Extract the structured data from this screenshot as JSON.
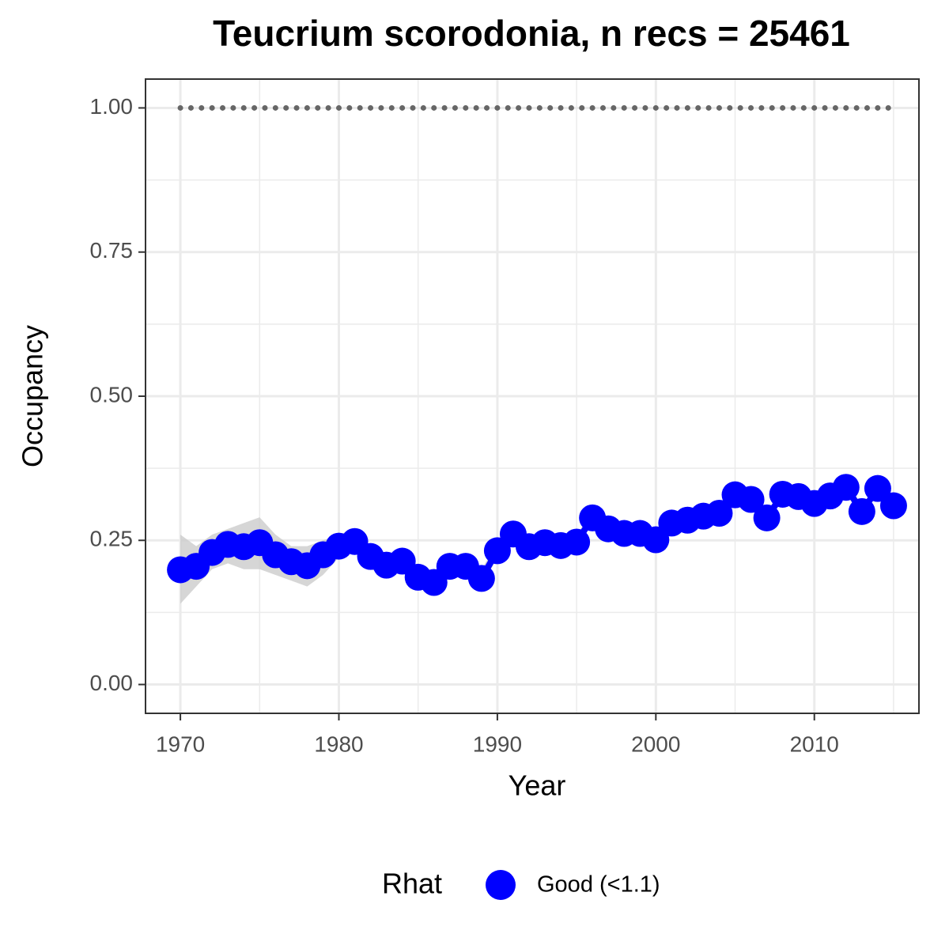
{
  "chart_data": {
    "type": "line",
    "title": "Teucrium scorodonia, n recs = 25461",
    "x_label": "Year",
    "y_label": "Occupancy",
    "legend_title": "Rhat",
    "x": [
      1970,
      1971,
      1972,
      1973,
      1974,
      1975,
      1976,
      1977,
      1978,
      1979,
      1980,
      1981,
      1982,
      1983,
      1984,
      1985,
      1986,
      1987,
      1988,
      1989,
      1990,
      1991,
      1992,
      1993,
      1994,
      1995,
      1996,
      1997,
      1998,
      1999,
      2000,
      2001,
      2002,
      2003,
      2004,
      2005,
      2006,
      2007,
      2008,
      2009,
      2010,
      2011,
      2012,
      2013,
      2014,
      2015
    ],
    "series": [
      {
        "name": "Good (<1.1)",
        "color": "#0000ff",
        "values": [
          0.199,
          0.205,
          0.229,
          0.243,
          0.239,
          0.246,
          0.225,
          0.213,
          0.206,
          0.225,
          0.24,
          0.248,
          0.222,
          0.207,
          0.214,
          0.186,
          0.177,
          0.205,
          0.205,
          0.184,
          0.232,
          0.261,
          0.239,
          0.246,
          0.241,
          0.247,
          0.289,
          0.27,
          0.262,
          0.262,
          0.251,
          0.28,
          0.285,
          0.292,
          0.297,
          0.329,
          0.321,
          0.289,
          0.33,
          0.326,
          0.314,
          0.327,
          0.342,
          0.3,
          0.34,
          0.31
        ],
        "lower": [
          0.14,
          0.17,
          0.2,
          0.21,
          0.2,
          0.2,
          0.19,
          0.18,
          0.17,
          0.19,
          0.22,
          0.23,
          0.2,
          0.19,
          0.2,
          0.17,
          0.16,
          0.19,
          0.19,
          0.17,
          0.22,
          0.25,
          0.23,
          0.235,
          0.23,
          0.235,
          0.28,
          0.26,
          0.25,
          0.25,
          0.24,
          0.27,
          0.275,
          0.28,
          0.285,
          0.32,
          0.31,
          0.28,
          0.32,
          0.315,
          0.305,
          0.315,
          0.33,
          0.29,
          0.33,
          0.3
        ],
        "upper": [
          0.26,
          0.24,
          0.26,
          0.27,
          0.28,
          0.29,
          0.26,
          0.24,
          0.24,
          0.25,
          0.26,
          0.27,
          0.24,
          0.22,
          0.23,
          0.2,
          0.19,
          0.22,
          0.22,
          0.2,
          0.245,
          0.275,
          0.25,
          0.255,
          0.25,
          0.26,
          0.3,
          0.28,
          0.275,
          0.275,
          0.26,
          0.29,
          0.295,
          0.3,
          0.31,
          0.34,
          0.33,
          0.3,
          0.34,
          0.335,
          0.325,
          0.34,
          0.355,
          0.31,
          0.35,
          0.32
        ]
      }
    ],
    "ribbon_color": "#cccccc",
    "reference_line": {
      "y": 1,
      "color": "#666666"
    },
    "xlim": [
      1967.8,
      2016.6
    ],
    "ylim": [
      -0.05,
      1.05
    ],
    "xticks": [
      1970,
      1980,
      1990,
      2000,
      2010
    ],
    "yticks": [
      {
        "value": 0,
        "label": "0.00"
      },
      {
        "value": 0.25,
        "label": "0.25"
      },
      {
        "value": 0.5,
        "label": "0.50"
      },
      {
        "value": 0.75,
        "label": "0.75"
      },
      {
        "value": 1,
        "label": "1.00"
      }
    ],
    "x_minor_grid": [
      1975,
      1985,
      1995,
      2005,
      2015
    ],
    "y_minor_grid": [
      0.125,
      0.375,
      0.625,
      0.875
    ],
    "grid": true
  }
}
